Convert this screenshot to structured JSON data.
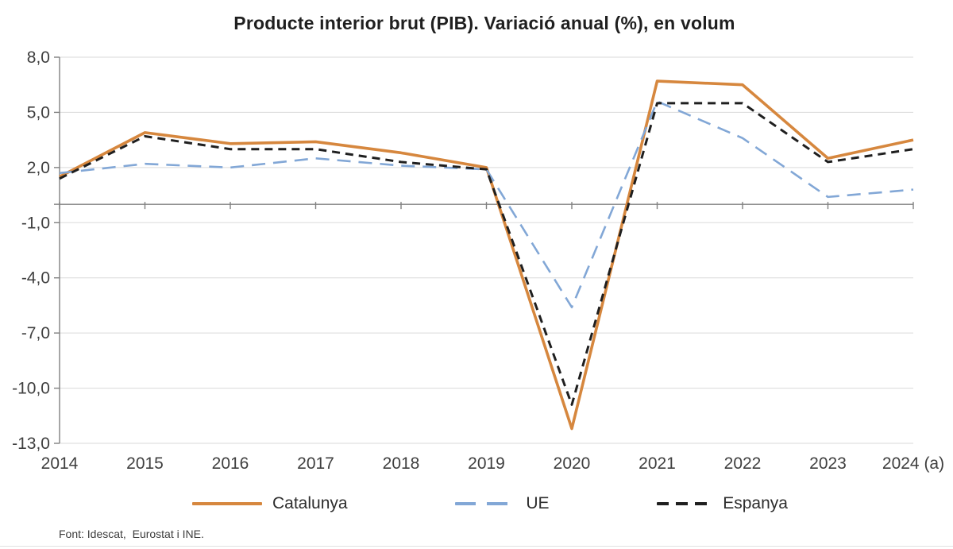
{
  "title": "Producte interior brut (PIB). Variació anual (%), en volum",
  "source": "Font: Idescat,  Eurostat i INE.",
  "chart_data": {
    "type": "line",
    "categories": [
      "2014",
      "2015",
      "2016",
      "2017",
      "2018",
      "2019",
      "2020",
      "2021",
      "2022",
      "2023",
      "2024 (a)"
    ],
    "series": [
      {
        "name": "Catalunya",
        "color": "#D6873E",
        "style": "solid",
        "values": [
          1.5,
          3.9,
          3.3,
          3.4,
          2.8,
          2.0,
          -12.2,
          6.7,
          6.5,
          2.5,
          3.5
        ]
      },
      {
        "name": "UE",
        "color": "#82A7D6",
        "style": "long-dash",
        "values": [
          1.7,
          2.2,
          2.0,
          2.5,
          2.1,
          1.9,
          -5.6,
          5.6,
          3.6,
          0.4,
          0.8
        ]
      },
      {
        "name": "Espanya",
        "color": "#1F1F1F",
        "style": "dash",
        "values": [
          1.4,
          3.7,
          3.0,
          3.0,
          2.3,
          1.9,
          -10.9,
          5.5,
          5.5,
          2.3,
          3.0
        ]
      }
    ],
    "ylim": [
      -13,
      8
    ],
    "yticks": [
      8,
      5,
      2,
      -1,
      -4,
      -7,
      -10,
      -13
    ],
    "xlabel": "",
    "ylabel": "",
    "grid": true,
    "zero_line": true,
    "legend_position": "bottom",
    "axis_color": "#808080",
    "grid_color": "#DADADA",
    "label_color": "#3F3F3F",
    "decimal_separator": ","
  }
}
